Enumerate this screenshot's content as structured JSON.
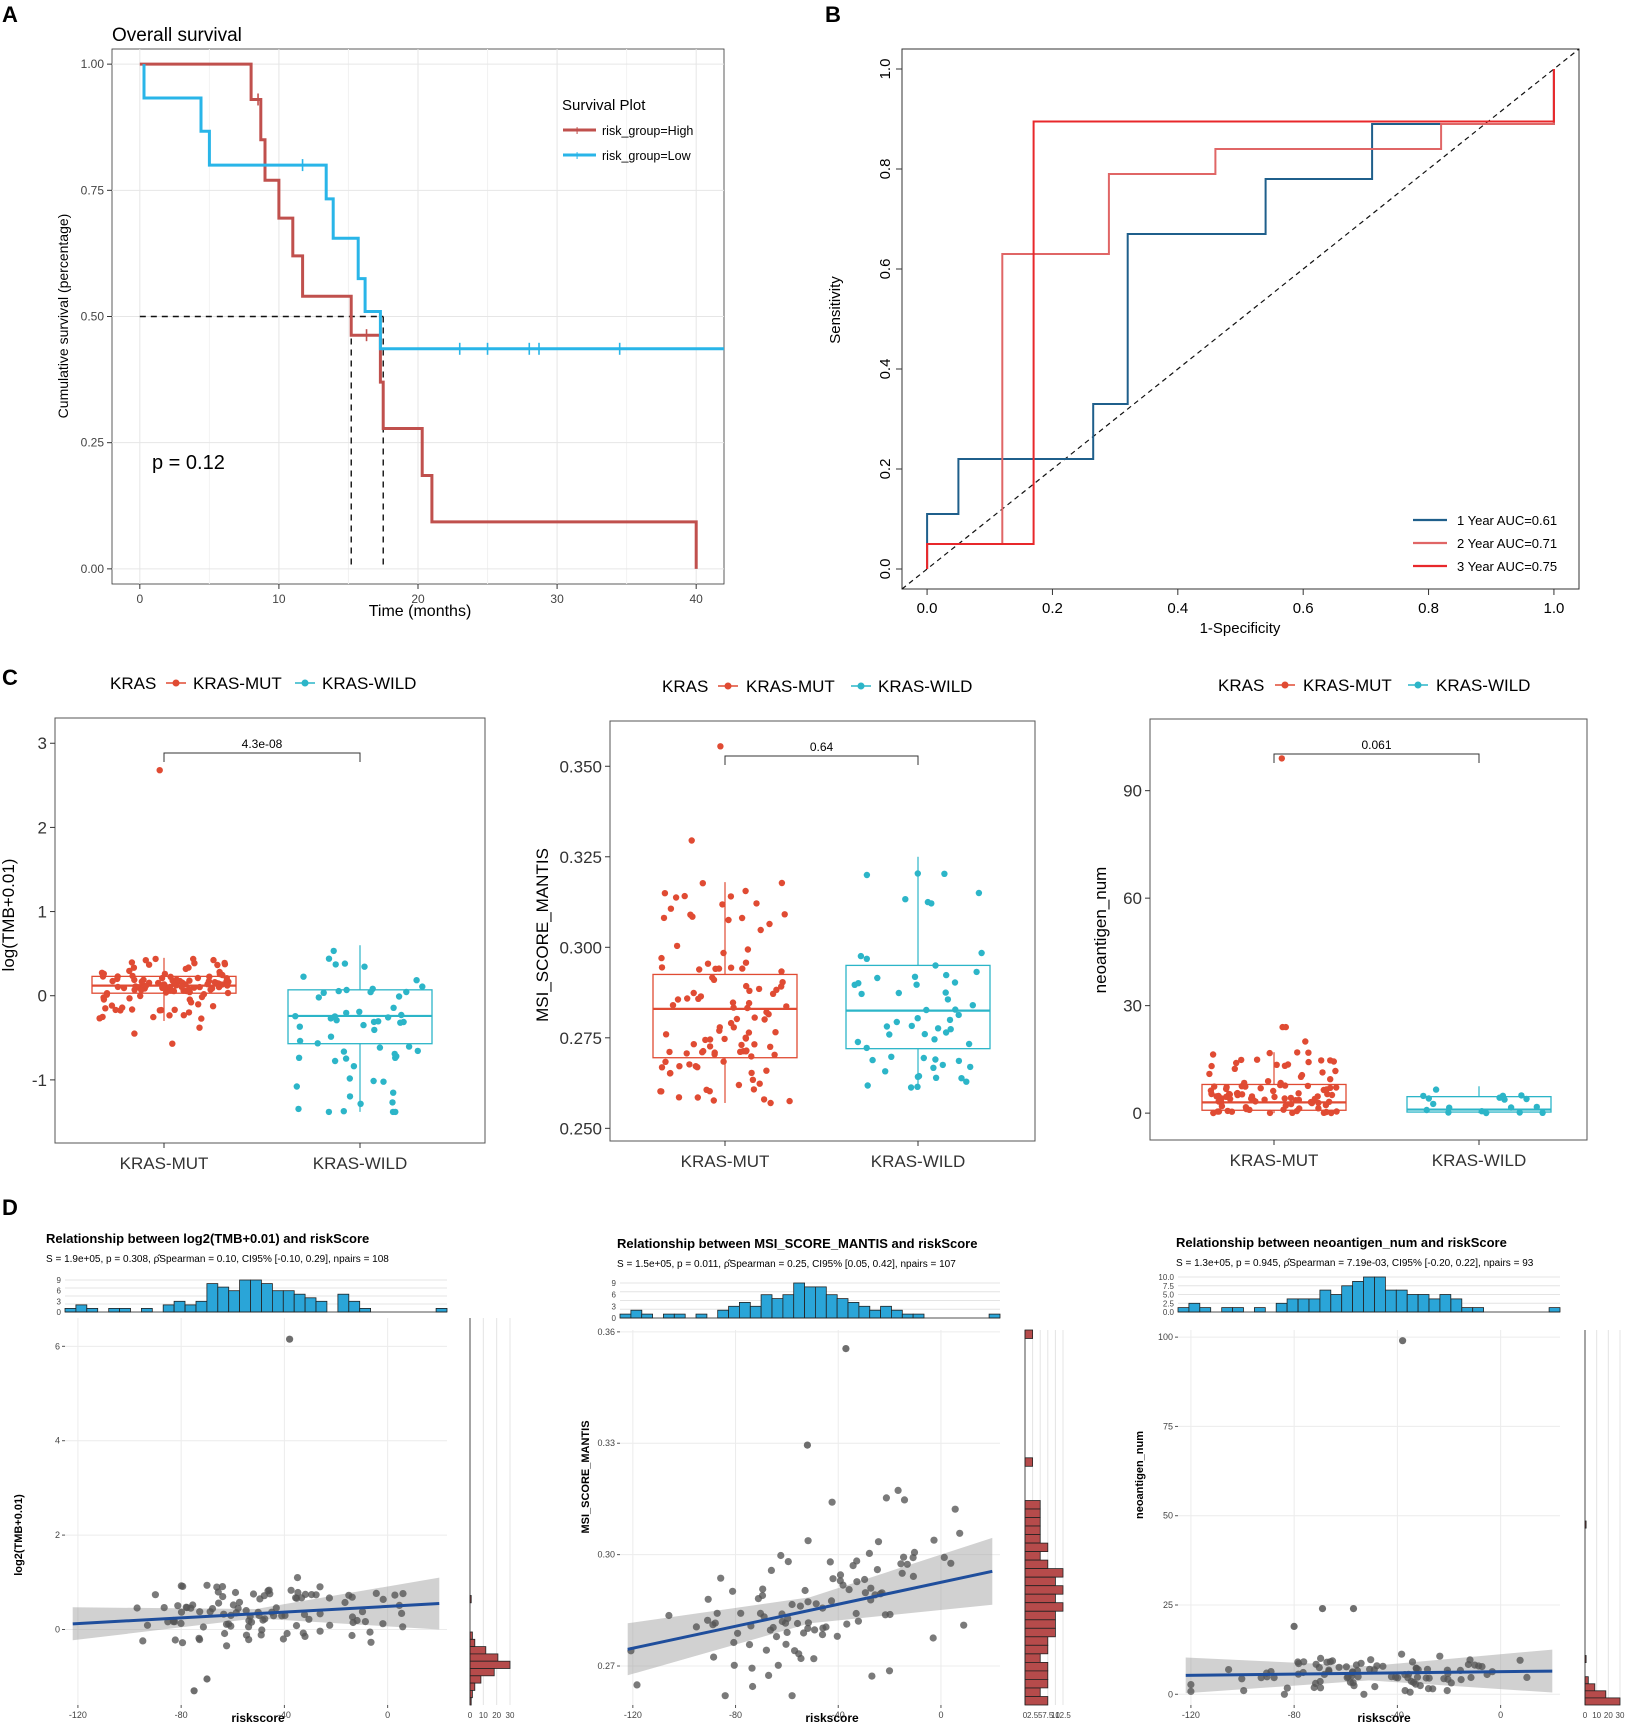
{
  "colors": {
    "high": "#c0504d",
    "low": "#29b5e8",
    "roc1": "#1f5f8b",
    "roc2": "#e06666",
    "roc3": "#e8282b",
    "mut": "#e04b33",
    "wild": "#2cb5c8",
    "hist_top": "#2aa5d8",
    "hist_right": "#b64b4b",
    "reg_line": "#1f4e9c",
    "point": "#555555"
  },
  "panel_labels": [
    "A",
    "B",
    "C",
    "D"
  ],
  "chart_data": [
    {
      "id": "A",
      "type": "line",
      "title": "Overall survival",
      "xlabel": "Time (months)",
      "ylabel": "Cumulative survival (percentage)",
      "xlim": [
        -2,
        42
      ],
      "ylim": [
        -0.03,
        1.03
      ],
      "xticks": [
        0,
        10,
        20,
        30,
        40
      ],
      "yticks": [
        0.0,
        0.25,
        0.5,
        0.75,
        1.0
      ],
      "ytick_labels": [
        "0.00",
        "0.25",
        "0.50",
        "0.75",
        "1.00"
      ],
      "annotation": "p = 0.12",
      "legend_title": "Survival Plot",
      "median_line_y": 0.5,
      "median_times": [
        15.2,
        17.5
      ],
      "series": [
        {
          "name": "risk_group=High",
          "color_key": "high",
          "steps": [
            [
              0,
              1.0
            ],
            [
              8,
              1.0
            ],
            [
              8,
              0.93
            ],
            [
              8.7,
              0.93
            ],
            [
              8.7,
              0.85
            ],
            [
              9,
              0.85
            ],
            [
              9,
              0.77
            ],
            [
              10,
              0.77
            ],
            [
              10,
              0.695
            ],
            [
              11,
              0.695
            ],
            [
              11,
              0.62
            ],
            [
              11.7,
              0.62
            ],
            [
              11.7,
              0.54
            ],
            [
              15.2,
              0.54
            ],
            [
              15.2,
              0.463
            ],
            [
              17.3,
              0.463
            ],
            [
              17.3,
              0.37
            ],
            [
              17.5,
              0.37
            ],
            [
              17.5,
              0.278
            ],
            [
              20.3,
              0.278
            ],
            [
              20.3,
              0.185
            ],
            [
              21,
              0.185
            ],
            [
              21,
              0.093
            ],
            [
              40,
              0.093
            ],
            [
              40,
              0.0
            ]
          ],
          "censors": [
            [
              8.5,
              0.93
            ],
            [
              16.3,
              0.463
            ]
          ]
        },
        {
          "name": "risk_group=Low",
          "color_key": "low",
          "steps": [
            [
              0.3,
              1.0
            ],
            [
              0.3,
              0.933
            ],
            [
              4.4,
              0.933
            ],
            [
              4.4,
              0.867
            ],
            [
              5,
              0.867
            ],
            [
              5,
              0.8
            ],
            [
              13.4,
              0.8
            ],
            [
              13.4,
              0.733
            ],
            [
              13.9,
              0.733
            ],
            [
              13.9,
              0.655
            ],
            [
              15.7,
              0.655
            ],
            [
              15.7,
              0.575
            ],
            [
              16.2,
              0.575
            ],
            [
              16.2,
              0.51
            ],
            [
              17.3,
              0.51
            ],
            [
              17.3,
              0.436
            ],
            [
              42,
              0.436
            ]
          ],
          "censors": [
            [
              11.7,
              0.8
            ],
            [
              23,
              0.436
            ],
            [
              25,
              0.436
            ],
            [
              28,
              0.436
            ],
            [
              28.7,
              0.436
            ],
            [
              34.5,
              0.436
            ]
          ]
        }
      ]
    },
    {
      "id": "B",
      "type": "line",
      "xlabel": "1-Specificity",
      "ylabel": "Sensitivity",
      "xlim": [
        -0.04,
        1.04
      ],
      "ylim": [
        -0.04,
        1.04
      ],
      "xticks": [
        0.0,
        0.2,
        0.4,
        0.6,
        0.8,
        1.0
      ],
      "yticks": [
        0.0,
        0.2,
        0.4,
        0.6,
        0.8,
        1.0
      ],
      "tick_labels": [
        "0.0",
        "0.2",
        "0.4",
        "0.6",
        "0.8",
        "1.0"
      ],
      "series": [
        {
          "name": "1 Year AUC=0.61",
          "color_key": "roc1",
          "points": [
            [
              0,
              0
            ],
            [
              0,
              0.11
            ],
            [
              0.05,
              0.11
            ],
            [
              0.05,
              0.22
            ],
            [
              0.265,
              0.22
            ],
            [
              0.265,
              0.33
            ],
            [
              0.32,
              0.33
            ],
            [
              0.32,
              0.67
            ],
            [
              0.54,
              0.67
            ],
            [
              0.54,
              0.78
            ],
            [
              0.71,
              0.78
            ],
            [
              0.71,
              0.89
            ],
            [
              1.0,
              0.89
            ],
            [
              1.0,
              1.0
            ]
          ]
        },
        {
          "name": "2 Year AUC=0.71",
          "color_key": "roc2",
          "points": [
            [
              0,
              0
            ],
            [
              0,
              0.05
            ],
            [
              0.12,
              0.05
            ],
            [
              0.12,
              0.63
            ],
            [
              0.29,
              0.63
            ],
            [
              0.29,
              0.79
            ],
            [
              0.46,
              0.79
            ],
            [
              0.46,
              0.84
            ],
            [
              0.82,
              0.84
            ],
            [
              0.82,
              0.89
            ],
            [
              1.0,
              0.89
            ],
            [
              1.0,
              1.0
            ]
          ]
        },
        {
          "name": "3 Year AUC=0.75",
          "color_key": "roc3",
          "points": [
            [
              0,
              0
            ],
            [
              0,
              0.05
            ],
            [
              0.17,
              0.05
            ],
            [
              0.17,
              0.895
            ],
            [
              1.0,
              0.895
            ],
            [
              1.0,
              1.0
            ]
          ]
        }
      ]
    },
    {
      "id": "C1",
      "type": "scatter",
      "legend_title": "KRAS",
      "legend_items": [
        "KRAS-MUT",
        "KRAS-WILD"
      ],
      "categories": [
        "KRAS-MUT",
        "KRAS-WILD"
      ],
      "ylabel": "log(TMB+0.01)",
      "ylim": [
        -1.75,
        3.3
      ],
      "yticks": [
        -1,
        0,
        1,
        2,
        3
      ],
      "ytick_labels": [
        "-1",
        "0",
        "1",
        "2",
        "3"
      ],
      "pvalue": "4.3e-08",
      "seed": 11,
      "boxes": [
        {
          "min": -0.3,
          "q1": 0.03,
          "median": 0.12,
          "q3": 0.23,
          "max": 0.45,
          "n": 110,
          "outliers": [
            2.68,
            -0.57,
            -0.45,
            -0.38
          ]
        },
        {
          "min": -1.38,
          "q1": -0.57,
          "median": -0.24,
          "q3": 0.07,
          "max": 0.6,
          "n": 56,
          "outliers": [
            -1.38,
            -1.38,
            -1.38
          ]
        }
      ]
    },
    {
      "id": "C2",
      "type": "scatter",
      "legend_title": "KRAS",
      "legend_items": [
        "KRAS-MUT",
        "KRAS-WILD"
      ],
      "categories": [
        "KRAS-MUT",
        "KRAS-WILD"
      ],
      "ylabel": "MSI_SCORE_MANTIS",
      "ylim": [
        0.2465,
        0.3625
      ],
      "yticks": [
        0.25,
        0.275,
        0.3,
        0.325,
        0.35
      ],
      "ytick_labels": [
        "0.250",
        "0.275",
        "0.300",
        "0.325",
        "0.350"
      ],
      "pvalue": "0.64",
      "seed": 23,
      "boxes": [
        {
          "min": 0.257,
          "q1": 0.2695,
          "median": 0.283,
          "q3": 0.2925,
          "max": 0.318,
          "n": 110,
          "outliers": [
            0.3555,
            0.3295
          ]
        },
        {
          "min": 0.261,
          "q1": 0.272,
          "median": 0.2825,
          "q3": 0.295,
          "max": 0.325,
          "n": 58,
          "outliers": []
        }
      ]
    },
    {
      "id": "C3",
      "type": "scatter",
      "legend_title": "KRAS",
      "legend_items": [
        "KRAS-MUT",
        "KRAS-WILD"
      ],
      "categories": [
        "KRAS-MUT",
        "KRAS-WILD"
      ],
      "ylabel": "neoantigen_num",
      "ylim": [
        -7.5,
        110
      ],
      "yticks": [
        0,
        30,
        60,
        90
      ],
      "ytick_labels": [
        "0",
        "30",
        "60",
        "90"
      ],
      "pvalue": "0.061",
      "seed": 37,
      "boxes": [
        {
          "min": 0,
          "q1": 0.8,
          "median": 3,
          "q3": 8,
          "max": 17,
          "n": 95,
          "outliers": [
            99,
            24,
            24,
            20
          ]
        },
        {
          "min": 0,
          "q1": 0.3,
          "median": 1,
          "q3": 4.6,
          "max": 7.5,
          "n": 18,
          "outliers": []
        }
      ]
    },
    {
      "id": "D1",
      "type": "scatter",
      "title": "Relationship between log2(TMB+0.01) and riskScore",
      "stats": "S = 1.9e+05, p = 0.308, ρ̂Spearman = 0.10, CI95% [-0.10, 0.29], npairs = 108",
      "xlabel": "riskscore",
      "ylabel": "log2(TMB+0.01)",
      "xlim": [
        -125,
        23
      ],
      "ylim": [
        -1.6,
        6.6
      ],
      "xticks": [
        -120,
        -80,
        -40,
        0
      ],
      "yticks": [
        0,
        2,
        4,
        6
      ],
      "ytick_labels": [
        "0",
        "2",
        "4",
        "6"
      ],
      "top_hist_ticks": [
        "0",
        "3",
        "6",
        "9"
      ],
      "top_hist": [
        1,
        2,
        1,
        0,
        1,
        1,
        0,
        1,
        0,
        2,
        3,
        2,
        3,
        8,
        7,
        6,
        9,
        9,
        8,
        6,
        6,
        5,
        4,
        3,
        0,
        5,
        3,
        1,
        0,
        0,
        0,
        0,
        0,
        0,
        1
      ],
      "right_hist_ticks": [
        "0",
        "10",
        "20",
        "30"
      ],
      "right_hist": [
        0,
        0,
        0,
        0,
        0,
        0,
        0,
        0,
        0,
        0,
        0,
        0,
        0,
        0,
        0,
        0,
        0,
        0,
        0,
        0,
        0,
        0,
        0,
        0,
        0,
        0,
        0,
        0,
        0,
        0,
        0,
        0,
        0,
        0,
        0,
        0,
        0,
        0,
        1,
        0,
        0,
        0,
        0,
        2,
        4,
        13,
        23,
        33,
        20,
        9,
        4,
        2,
        1
      ],
      "fit": {
        "x0": -122,
        "y0": 0.12,
        "x1": 20,
        "y1": 0.55,
        "band": [
          0.35,
          0.1,
          0.55
        ]
      },
      "seed": 51,
      "n": 108,
      "cluster": {
        "x": [
          -105,
          15
        ],
        "y": [
          -0.9,
          1.1
        ]
      },
      "extra_points": [
        [
          -38,
          6.15
        ],
        [
          -75,
          -1.3
        ],
        [
          -70,
          -1.05
        ]
      ]
    },
    {
      "id": "D2",
      "type": "scatter",
      "title": "Relationship between MSI_SCORE_MANTIS and riskScore",
      "stats": "S = 1.5e+05, p = 0.011, ρ̂Spearman = 0.25, CI95% [0.05, 0.42], npairs = 107",
      "xlabel": "riskscore",
      "ylabel": "MSI_SCORE_MANTIS",
      "xlim": [
        -125,
        23
      ],
      "ylim": [
        0.2595,
        0.3605
      ],
      "xticks": [
        -120,
        -80,
        -40,
        0
      ],
      "yticks": [
        0.27,
        0.3,
        0.33,
        0.36
      ],
      "ytick_labels": [
        "0.27",
        "0.30",
        "0.33",
        "0.36"
      ],
      "top_hist_ticks": [
        "0",
        "3",
        "6",
        "9"
      ],
      "top_hist": [
        1,
        2,
        1,
        0,
        1,
        1,
        0,
        1,
        0,
        2,
        3,
        4,
        3,
        6,
        5,
        6,
        9,
        8,
        8,
        6,
        5,
        4,
        3,
        2,
        3,
        2,
        1,
        1,
        0,
        0,
        0,
        0,
        0,
        0,
        1
      ],
      "right_hist_ticks": [
        "0",
        "2.5",
        "5",
        "7.5",
        "10",
        "12.5"
      ],
      "right_hist": [
        1,
        0,
        0,
        0,
        0,
        0,
        0,
        0,
        0,
        0,
        0,
        0,
        0,
        0,
        0,
        1,
        0,
        0,
        0,
        0,
        2,
        2,
        2,
        2,
        2,
        3,
        2,
        3,
        5,
        4,
        5,
        4,
        5,
        4,
        4,
        4,
        3,
        3,
        2,
        3,
        3,
        3,
        2,
        3
      ],
      "fit": {
        "x0": -122,
        "y0": 0.2745,
        "x1": 20,
        "y1": 0.2955,
        "band": [
          0.007,
          0.0035,
          0.009
        ]
      },
      "seed": 64,
      "n": 107,
      "cluster": {
        "x": [
          -122,
          15
        ],
        "y": [
          0.262,
          0.32
        ]
      },
      "extra_points": [
        [
          -37,
          0.3555
        ],
        [
          -52,
          0.3295
        ]
      ]
    },
    {
      "id": "D3",
      "type": "scatter",
      "title": "Relationship between neoantigen_num and riskScore",
      "stats": "S = 1.3e+05, p = 0.945, ρ̂Spearman = 7.19e-03, CI95% [-0.20, 0.22], npairs = 93",
      "xlabel": "riskscore",
      "ylabel": "neoantigen_num",
      "xlim": [
        -125,
        23
      ],
      "ylim": [
        -3,
        102
      ],
      "xticks": [
        -120,
        -80,
        -40,
        0
      ],
      "yticks": [
        0,
        25,
        50,
        75,
        100
      ],
      "ytick_labels": [
        "0",
        "25",
        "50",
        "75",
        "100"
      ],
      "top_hist_ticks": [
        "0.0",
        "2.5",
        "5.0",
        "7.5",
        "10.0"
      ],
      "top_hist": [
        1,
        2,
        1,
        0,
        1,
        1,
        0,
        1,
        0,
        2,
        3,
        3,
        3,
        5,
        4,
        6,
        7,
        8,
        8,
        5,
        5,
        4,
        4,
        3,
        4,
        3,
        1,
        1,
        0,
        0,
        0,
        0,
        0,
        0,
        1
      ],
      "right_hist_ticks": [
        "0",
        "10",
        "20",
        "30"
      ],
      "right_hist": [
        0,
        0,
        0,
        0,
        0,
        0,
        0,
        0,
        0,
        0,
        0,
        0,
        0,
        0,
        0,
        0,
        0,
        0,
        0,
        0,
        0,
        0,
        0,
        0,
        0,
        0,
        0,
        1,
        0,
        0,
        0,
        0,
        0,
        0,
        0,
        0,
        0,
        0,
        0,
        0,
        0,
        0,
        0,
        0,
        0,
        0,
        1,
        0,
        0,
        3,
        9,
        19,
        32
      ],
      "fit": {
        "x0": -122,
        "y0": 5.3,
        "x1": 20,
        "y1": 6.5,
        "band": [
          5,
          2,
          6
        ]
      },
      "seed": 79,
      "n": 93,
      "cluster": {
        "x": [
          -120,
          20
        ],
        "y": [
          0,
          14
        ]
      },
      "extra_points": [
        [
          -38,
          99
        ],
        [
          -57,
          24
        ],
        [
          -69,
          24
        ],
        [
          -80,
          19
        ]
      ]
    }
  ]
}
